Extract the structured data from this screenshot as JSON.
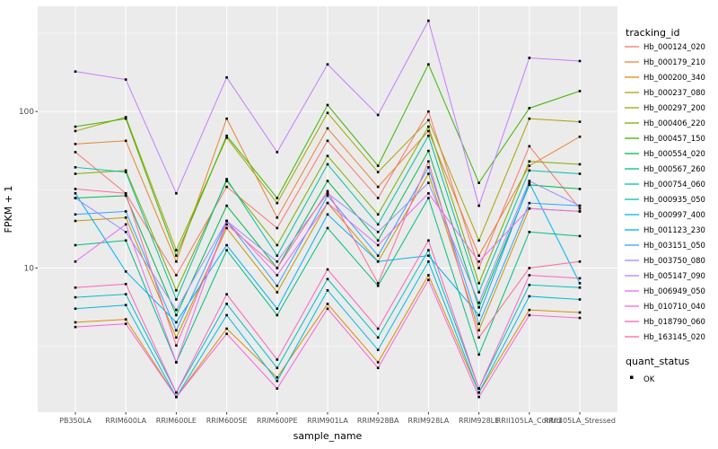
{
  "chart_data": {
    "type": "line",
    "title": "",
    "xlabel": "sample_name",
    "ylabel": "FPKM + 1",
    "y_scale": "log10",
    "ylim": [
      1.2,
      470
    ],
    "y_ticks": [
      10,
      100
    ],
    "y_minor_ticks": [
      3.162,
      31.62,
      316.2
    ],
    "panel_bg": "#EBEBEB",
    "grid_color": "#FFFFFF",
    "point_color": "#000000",
    "tick_label_color": "#4D4D4D",
    "categories": [
      "PB350LA",
      "RRIM600LA",
      "RRIM600LE",
      "RRIM600SE",
      "RRIM600PE",
      "RRIM901LA",
      "RRIM928BA",
      "RRIM928LA",
      "RRIM928LE",
      "RRII105LA_Control",
      "RRII105LA_Stressed"
    ],
    "series": [
      {
        "name": "Hb_000124_020",
        "color": "#F8766D",
        "values": [
          55,
          30,
          9,
          33,
          18,
          65,
          28,
          100,
          10,
          60,
          24
        ]
      },
      {
        "name": "Hb_000179_210",
        "color": "#EA8331",
        "values": [
          62,
          65,
          11,
          90,
          21,
          78,
          33,
          75,
          12,
          45,
          69
        ]
      },
      {
        "name": "Hb_000200_340",
        "color": "#D89000",
        "values": [
          4.5,
          4.7,
          1.5,
          4.1,
          2.0,
          5.9,
          2.5,
          9,
          1.6,
          5.4,
          5.2
        ]
      },
      {
        "name": "Hb_000237_080",
        "color": "#C09B00",
        "values": [
          20,
          21,
          3.6,
          18,
          7,
          26,
          11,
          40,
          4,
          24,
          23
        ]
      },
      {
        "name": "Hb_000297_200",
        "color": "#A3A500",
        "values": [
          75,
          92,
          13,
          68,
          26,
          98,
          41,
          88,
          15,
          90,
          86
        ]
      },
      {
        "name": "Hb_000406_220",
        "color": "#7CAE00",
        "values": [
          40,
          42,
          7.2,
          36,
          14,
          52,
          22,
          80,
          8,
          48,
          46
        ]
      },
      {
        "name": "Hb_000457_150",
        "color": "#39B600",
        "values": [
          80,
          90,
          12,
          70,
          28,
          110,
          45,
          200,
          35,
          105,
          135
        ]
      },
      {
        "name": "Hb_000554_020",
        "color": "#00BB4E",
        "values": [
          28,
          29,
          5,
          25,
          10,
          36,
          15,
          56,
          5.6,
          34,
          32
        ]
      },
      {
        "name": "Hb_000567_260",
        "color": "#00BF7D",
        "values": [
          14,
          15,
          2.5,
          13,
          5,
          18,
          7.7,
          28,
          2.8,
          17,
          16
        ]
      },
      {
        "name": "Hb_000754_060",
        "color": "#00C1A3",
        "values": [
          44,
          41,
          6.3,
          37,
          12,
          46,
          19,
          70,
          7,
          42,
          40
        ]
      },
      {
        "name": "Hb_000935_050",
        "color": "#00BFC4",
        "values": [
          6.5,
          6.8,
          1.6,
          5.9,
          2.3,
          8.5,
          3.6,
          13,
          1.7,
          7.8,
          7.5
        ]
      },
      {
        "name": "Hb_000997_400",
        "color": "#00BAE0",
        "values": [
          5.5,
          5.8,
          1.5,
          5,
          1.9,
          7.2,
          3,
          11,
          1.6,
          6.6,
          6.3
        ]
      },
      {
        "name": "Hb_001123_230",
        "color": "#00B0F6",
        "values": [
          30,
          9.5,
          4.5,
          14,
          5.5,
          22,
          11,
          12,
          5,
          35,
          8
        ]
      },
      {
        "name": "Hb_003151_050",
        "color": "#35A2FF",
        "values": [
          22,
          23,
          4,
          20,
          7.7,
          29,
          12,
          44,
          4.4,
          26,
          25
        ]
      },
      {
        "name": "Hb_003750_080",
        "color": "#9590FF",
        "values": [
          28,
          17,
          5.4,
          20,
          11,
          30,
          17,
          35,
          6,
          36,
          25
        ]
      },
      {
        "name": "Hb_005147_090",
        "color": "#C77CFF",
        "values": [
          180,
          160,
          30,
          165,
          55,
          200,
          95,
          380,
          25,
          220,
          210
        ]
      },
      {
        "name": "Hb_006949_050",
        "color": "#E76BF3",
        "values": [
          11,
          19,
          2.5,
          20,
          9,
          26,
          14,
          30,
          11,
          24,
          23
        ]
      },
      {
        "name": "Hb_010710_040",
        "color": "#FA62DB",
        "values": [
          4.2,
          4.4,
          1.5,
          3.8,
          1.7,
          5.5,
          2.3,
          8.4,
          1.5,
          5,
          4.8
        ]
      },
      {
        "name": "Hb_018790_060",
        "color": "#FF62BC",
        "values": [
          7.5,
          7.9,
          1.6,
          6.8,
          2.6,
          9.8,
          4.1,
          15,
          1.7,
          9,
          8.6
        ]
      },
      {
        "name": "Hb_163145_020",
        "color": "#FF6A98",
        "values": [
          32,
          30,
          3.2,
          19,
          10,
          31,
          8,
          48,
          3.6,
          10,
          11
        ]
      }
    ],
    "legend": {
      "color_title": "tracking_id",
      "shape_title": "quant_status",
      "shape_items": [
        "OK"
      ]
    }
  }
}
